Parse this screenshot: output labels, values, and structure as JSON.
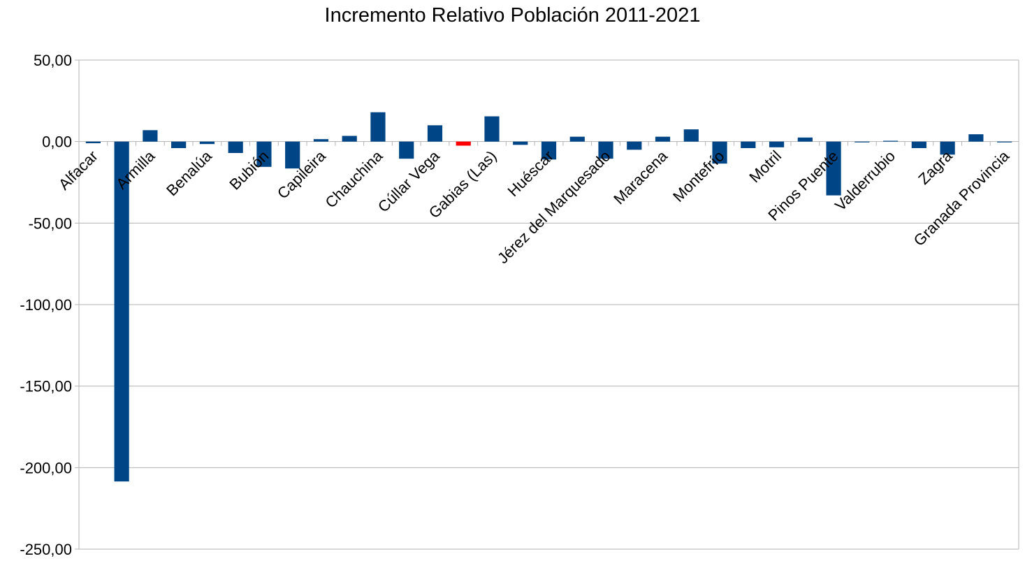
{
  "chart_data": {
    "type": "bar",
    "title": "Incremento Relativo Población 2011-2021",
    "xlabel": "",
    "ylabel": "",
    "ylim": [
      -250,
      50
    ],
    "yticks": [
      50,
      0,
      -50,
      -100,
      -150,
      -200,
      -250
    ],
    "ytick_labels": [
      "50,00",
      "0,00",
      "-50,00",
      "-100,00",
      "-150,00",
      "-200,00",
      "-250,00"
    ],
    "grid": true,
    "legend": "none",
    "bar_color": "#004586",
    "highlight_color": "#ff0000",
    "categories": [
      "Alfacar",
      "",
      "Armilla",
      "",
      "Benalúa",
      "",
      "Bubión",
      "",
      "Capileira",
      "",
      "Chauchina",
      "",
      "Cúllar Vega",
      "",
      "Gabias (Las)",
      "",
      "Huéscar",
      "",
      "Jérez del Marquesado",
      "",
      "Maracena",
      "",
      "Montefrío",
      "",
      "Motril",
      "",
      "Pinos Puente",
      "",
      "Valderrubio",
      "",
      "Zagra",
      "",
      "Granada Provincia"
    ],
    "values": [
      -1.0,
      -208.5,
      7.0,
      -4.0,
      -1.5,
      -7.0,
      -15.5,
      -16.5,
      1.5,
      3.5,
      18.0,
      -10.5,
      10.0,
      -2.5,
      15.5,
      -2.0,
      -11.0,
      3.0,
      -10.5,
      -5.0,
      3.0,
      7.5,
      -13.5,
      -4.0,
      -3.5,
      2.5,
      -33.0,
      -0.5,
      0.5,
      -4.0,
      -8.0,
      4.5,
      -0.5
    ],
    "highlighted_index": 13
  }
}
